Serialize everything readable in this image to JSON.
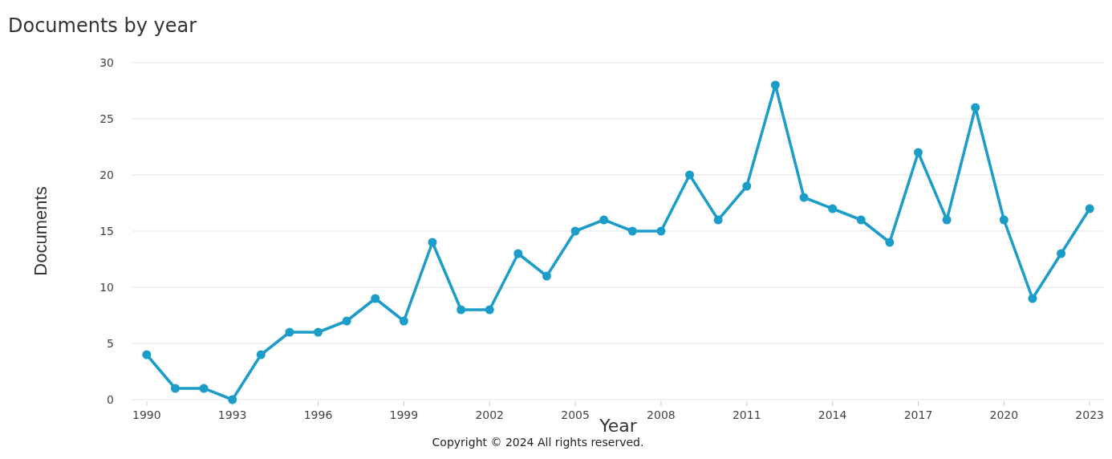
{
  "chart_data": {
    "type": "line",
    "title": "Documents by year",
    "xlabel": "Year",
    "ylabel": "Documents",
    "annotations": [
      "Copyright © 2024 All rights reserved."
    ],
    "x": [
      1990,
      1991,
      1992,
      1993,
      1994,
      1995,
      1996,
      1997,
      1998,
      1999,
      2000,
      2001,
      2002,
      2003,
      2004,
      2005,
      2006,
      2007,
      2008,
      2009,
      2010,
      2011,
      2012,
      2013,
      2014,
      2015,
      2016,
      2017,
      2018,
      2019,
      2020,
      2021,
      2022,
      2023
    ],
    "series": [
      {
        "color": "#1c9dc9",
        "values": [
          4,
          1,
          1,
          0,
          4,
          6,
          6,
          7,
          9,
          7,
          14,
          8,
          8,
          13,
          11,
          15,
          16,
          15,
          15,
          20,
          16,
          19,
          28,
          18,
          17,
          16,
          14,
          22,
          16,
          26,
          16,
          9,
          13,
          17
        ]
      }
    ],
    "xlim": [
      1989.5,
      2023.5
    ],
    "xticks": [
      1990,
      1993,
      1996,
      1999,
      2002,
      2005,
      2008,
      2011,
      2014,
      2017,
      2020,
      2023
    ],
    "ylim": [
      0,
      30
    ],
    "yticks": [
      0,
      5,
      10,
      15,
      20,
      25,
      30
    ],
    "grid": "y",
    "marker": "circle",
    "line_style": "solid"
  }
}
